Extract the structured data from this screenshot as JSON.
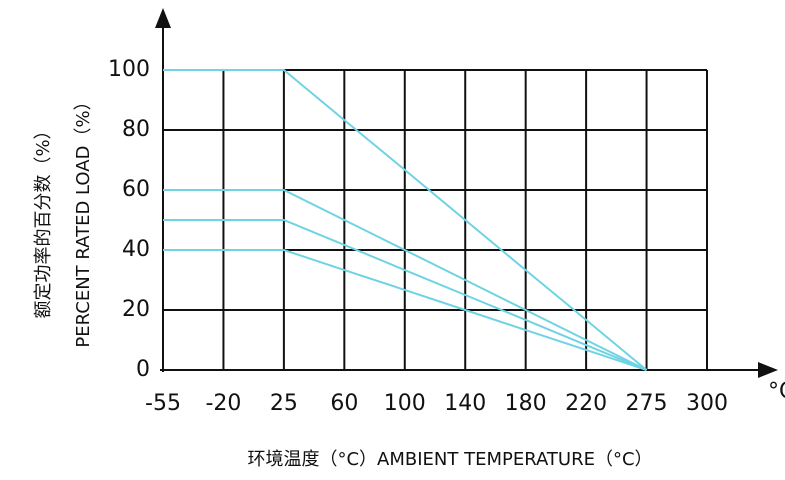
{
  "chart_data": {
    "type": "line",
    "y_label_cn": "额定功率的百分数（%）",
    "y_label": "PERCENT RATED LOAD（%）",
    "x_label": "环境温度（°C）AMBIENT TEMPERATURE（°C）",
    "x_unit": "°C",
    "categories": [
      "-55",
      "-20",
      "25",
      "60",
      "100",
      "140",
      "180",
      "220",
      "275",
      "300"
    ],
    "series": [
      {
        "color": "#6fd3e3",
        "values": [
          100,
          100,
          100,
          83.3,
          66.7,
          50,
          33.3,
          16.7,
          0,
          null
        ]
      },
      {
        "color": "#6fd3e3",
        "values": [
          60,
          60,
          60,
          50,
          40,
          30,
          20,
          10,
          0,
          null
        ]
      },
      {
        "color": "#6fd3e3",
        "values": [
          50,
          50,
          50,
          41.7,
          33.3,
          25,
          16.7,
          8.3,
          0,
          null
        ]
      },
      {
        "color": "#6fd3e3",
        "values": [
          40,
          40,
          40,
          33.3,
          26.7,
          20,
          13.3,
          6.7,
          0,
          null
        ]
      }
    ],
    "ylim": [
      0,
      100
    ],
    "yticks": [
      0,
      20,
      40,
      60,
      80,
      100
    ],
    "grid": true
  }
}
